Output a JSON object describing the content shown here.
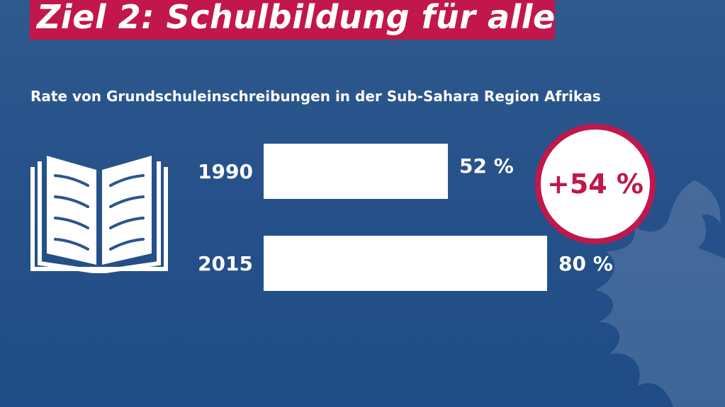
{
  "title": "Ziel 2: Schulbildung für alle",
  "subtitle": "Rate von Grundschuleinschreibungen in der Sub-Sahara Region Afrikas",
  "badge": "+54 %",
  "icons": [
    "book-icon",
    "eagle-watermark-icon"
  ],
  "colors": {
    "accent": "#c1174a",
    "background": "#27518a",
    "bar": "#ffffff",
    "text": "#ffffff"
  },
  "chart_data": {
    "type": "bar",
    "orientation": "horizontal",
    "categories": [
      "1990",
      "2015"
    ],
    "values": [
      52,
      80
    ],
    "value_labels": [
      "52 %",
      "80 %"
    ],
    "unit": "%",
    "title": "Rate von Grundschuleinschreibungen in der Sub-Sahara Region Afrikas",
    "xlim": [
      0,
      100
    ],
    "grid": false,
    "legend": "none"
  }
}
